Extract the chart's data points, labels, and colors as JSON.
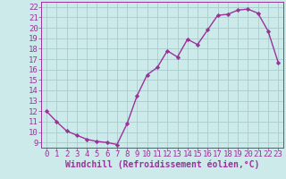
{
  "x": [
    0,
    1,
    2,
    3,
    4,
    5,
    6,
    7,
    8,
    9,
    10,
    11,
    12,
    13,
    14,
    15,
    16,
    17,
    18,
    19,
    20,
    21,
    22,
    23
  ],
  "y": [
    12,
    11,
    10.1,
    9.7,
    9.3,
    9.1,
    9.0,
    8.8,
    10.8,
    13.5,
    15.5,
    16.2,
    17.8,
    17.2,
    18.9,
    18.4,
    19.8,
    21.2,
    21.3,
    21.7,
    21.8,
    21.4,
    19.7,
    16.7
  ],
  "line_color": "#993399",
  "marker": "D",
  "marker_size": 2.2,
  "background_color": "#cceaea",
  "grid_color": "#aacccc",
  "xlabel": "Windchill (Refroidissement éolien,°C)",
  "ylabel": "",
  "xlim": [
    -0.5,
    23.5
  ],
  "ylim": [
    8.5,
    22.5
  ],
  "yticks": [
    9,
    10,
    11,
    12,
    13,
    14,
    15,
    16,
    17,
    18,
    19,
    20,
    21,
    22
  ],
  "xticks": [
    0,
    1,
    2,
    3,
    4,
    5,
    6,
    7,
    8,
    9,
    10,
    11,
    12,
    13,
    14,
    15,
    16,
    17,
    18,
    19,
    20,
    21,
    22,
    23
  ],
  "tick_color": "#993399",
  "label_color": "#993399",
  "xlabel_fontsize": 7.0,
  "tick_fontsize": 6.5,
  "line_width": 1.0
}
